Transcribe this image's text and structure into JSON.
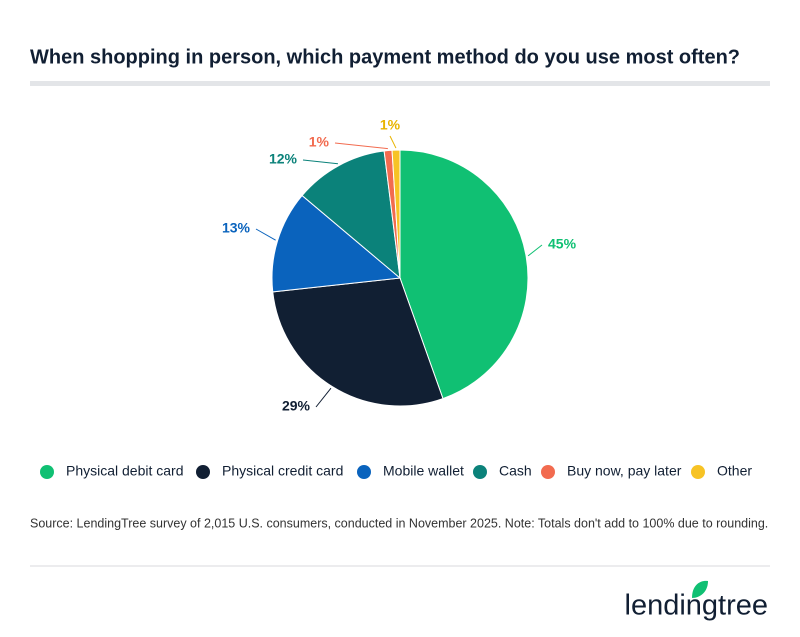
{
  "chart_data": {
    "type": "pie",
    "title": "When shopping in person, which payment method do you use most often?",
    "categories": [
      "Physical debit card",
      "Physical credit card",
      "Mobile wallet",
      "Cash",
      "Buy now, pay later",
      "Other"
    ],
    "values": [
      45,
      29,
      13,
      12,
      1,
      1
    ],
    "value_labels": [
      "45%",
      "29%",
      "13%",
      "12%",
      "1%",
      "1%"
    ],
    "colors": [
      "#10c073",
      "#111f33",
      "#0a63bd",
      "#0b827a",
      "#f26b4f",
      "#f7c325"
    ],
    "label_colors": [
      "#10c073",
      "#111f33",
      "#0a63bd",
      "#0b827a",
      "#f26b4f",
      "#e8b400"
    ],
    "source": "Source: LendingTree survey of 2,015 U.S. consumers, conducted in November 2025. Note: Totals don't add to 100% due to rounding.",
    "logo": "lendingtree"
  }
}
